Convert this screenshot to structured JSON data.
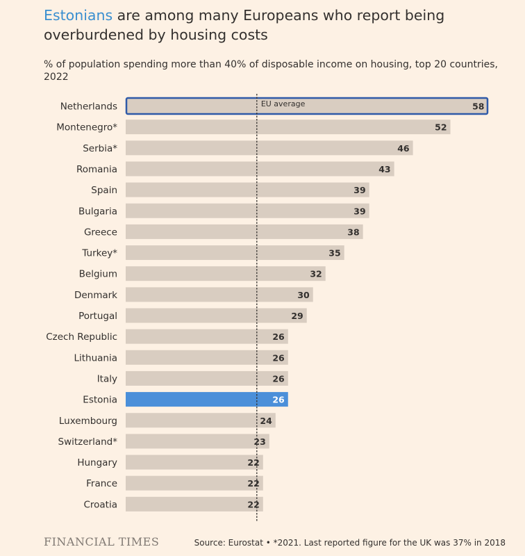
{
  "header": {
    "title_highlight": "Estonians",
    "title_rest": " are among many Europeans who report being overburdened by housing costs",
    "subtitle": "% of population spending more than 40% of disposable income on housing, top 20 countries, 2022"
  },
  "footer": {
    "logo": "FINANCIAL TIMES",
    "source": "Source: Eurostat • *2021. Last reported figure for the UK was 37% in 2018"
  },
  "colors": {
    "background": "#fdf1e4",
    "bar": "#d9cdc1",
    "highlight": "#4b8fd9",
    "outline": "#2f5aa8",
    "title_highlight": "#3a8fd0"
  },
  "chart_data": {
    "type": "bar",
    "orientation": "horizontal",
    "categories": [
      "Netherlands",
      "Montenegro*",
      "Serbia*",
      "Romania",
      "Spain",
      "Bulgaria",
      "Greece",
      "Turkey*",
      "Belgium",
      "Denmark",
      "Portugal",
      "Czech Republic",
      "Lithuania",
      "Italy",
      "Estonia",
      "Luxembourg",
      "Switzerland*",
      "Hungary",
      "France",
      "Croatia"
    ],
    "values": [
      58,
      52,
      46,
      43,
      39,
      39,
      38,
      35,
      32,
      30,
      29,
      26,
      26,
      26,
      26,
      24,
      23,
      22,
      22,
      22
    ],
    "labels": [
      "58",
      "52",
      "46",
      "43",
      "39",
      "39",
      "38",
      "35",
      "32",
      "30",
      "29",
      "26",
      "26",
      "26",
      "26",
      "24",
      "23",
      "22",
      "22",
      "22"
    ],
    "highlighted": "Estonia",
    "outlined": "Netherlands",
    "reference_line": {
      "label": "EU average",
      "value": 21
    },
    "xlim": [
      0,
      58.5
    ]
  }
}
